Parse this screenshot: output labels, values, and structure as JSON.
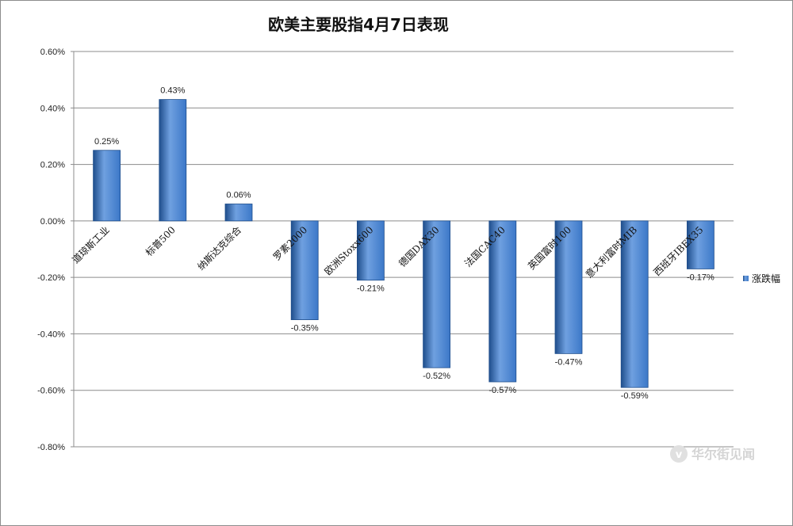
{
  "chart_data": {
    "type": "bar",
    "title": "欧美主要股指4月7日表现",
    "categories": [
      "道琼斯工业",
      "标普500",
      "纳斯达克综合",
      "罗素2000",
      "欧洲Stoxx600",
      "德国DAX30",
      "法国CAC40",
      "英国富时100",
      "意大利富时MIB",
      "西班牙IBEX35"
    ],
    "series": [
      {
        "name": "涨跌幅",
        "values": [
          0.25,
          0.43,
          0.06,
          -0.35,
          -0.21,
          -0.52,
          -0.57,
          -0.47,
          -0.59,
          -0.17
        ],
        "labels": [
          "0.25%",
          "0.43%",
          "0.06%",
          "-0.35%",
          "-0.21%",
          "-0.52%",
          "-0.57%",
          "-0.47%",
          "-0.59%",
          "-0.17%"
        ]
      }
    ],
    "ylim": [
      -0.8,
      0.6
    ],
    "yticks": [
      0.6,
      0.4,
      0.2,
      0.0,
      -0.2,
      -0.4,
      -0.6,
      -0.8
    ],
    "ytick_labels": [
      "0.60%",
      "0.40%",
      "0.20%",
      "0.00%",
      "-0.20%",
      "-0.40%",
      "-0.60%",
      "-0.80%"
    ],
    "xlabel": "",
    "ylabel": "",
    "grid": true,
    "legend": "right",
    "colors": {
      "bar_light": "#6fa0e0",
      "bar_mid": "#3c78c8",
      "bar_dark": "#1f4e8c",
      "grid": "#8c8c8c"
    }
  },
  "watermark": {
    "text": "华尔街见闻",
    "icon": "wallstreetcn-logo-icon"
  }
}
